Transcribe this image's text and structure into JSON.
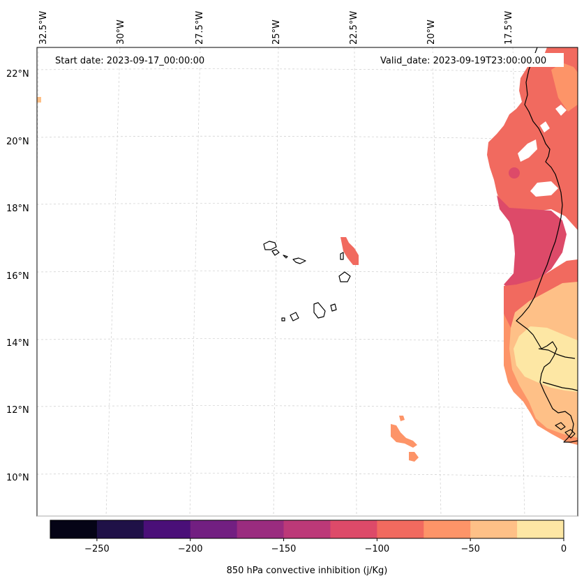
{
  "map": {
    "start_date_text": "Start date: 2023-09-17_00:00:00",
    "valid_date_text": "Valid_date: 2023-09-19T23:00:00.00",
    "lon_labels": [
      "32.5°W",
      "30°W",
      "27.5°W",
      "25°W",
      "22.5°W",
      "20°W",
      "17.5°W"
    ],
    "lat_labels": [
      "22°N",
      "20°N",
      "18°N",
      "16°N",
      "14°N",
      "12°N",
      "10°N"
    ]
  },
  "colorbar": {
    "title": "850 hPa convective inhibition (j/Kg)",
    "tick_labels": [
      "−250",
      "−200",
      "−150",
      "−100",
      "−50",
      "0"
    ],
    "range": [
      -275,
      0
    ],
    "bins": [
      {
        "from": -275,
        "to": -250,
        "color": "#050416"
      },
      {
        "from": -250,
        "to": -225,
        "color": "#1f1147"
      },
      {
        "from": -225,
        "to": -200,
        "color": "#4a0f78"
      },
      {
        "from": -200,
        "to": -175,
        "color": "#721f81"
      },
      {
        "from": -175,
        "to": -150,
        "color": "#9a2c7f"
      },
      {
        "from": -150,
        "to": -125,
        "color": "#bc3978"
      },
      {
        "from": -125,
        "to": -100,
        "color": "#dd4a69"
      },
      {
        "from": -100,
        "to": -75,
        "color": "#f16a5f"
      },
      {
        "from": -75,
        "to": -50,
        "color": "#fd9468"
      },
      {
        "from": -50,
        "to": -25,
        "color": "#fec087"
      },
      {
        "from": -25,
        "to": 0,
        "color": "#fde7a4"
      }
    ]
  }
}
